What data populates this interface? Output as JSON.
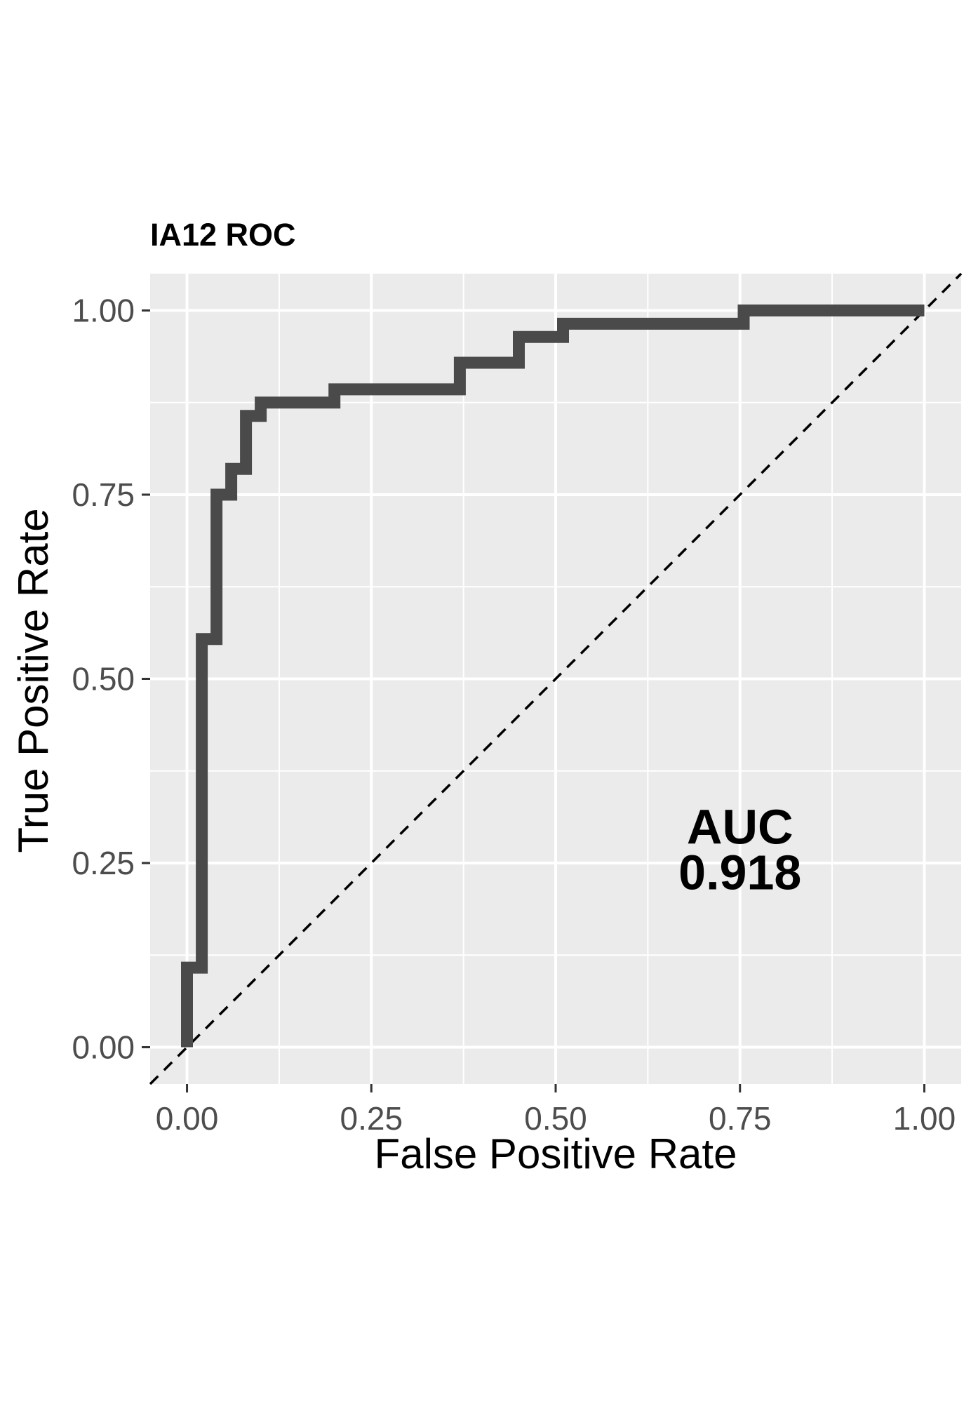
{
  "chart_data": {
    "type": "line",
    "title": "IA12 ROC",
    "xlabel": "False Positive Rate",
    "ylabel": "True Positive Rate",
    "xlim": [
      -0.05,
      1.05
    ],
    "ylim": [
      -0.05,
      1.05
    ],
    "x_ticks": [
      "0.00",
      "0.25",
      "0.50",
      "0.75",
      "1.00"
    ],
    "y_ticks": [
      "0.00",
      "0.25",
      "0.50",
      "0.75",
      "1.00"
    ],
    "x_tick_values": [
      0,
      0.25,
      0.5,
      0.75,
      1.0
    ],
    "y_tick_values": [
      0,
      0.25,
      0.5,
      0.75,
      1.0
    ],
    "grid": true,
    "background": "#ebebeb",
    "series": [
      {
        "color": "#4a4a4a",
        "x": [
          0,
          0,
          0.02,
          0.02,
          0.04,
          0.04,
          0.06,
          0.06,
          0.08,
          0.08,
          0.1,
          0.1,
          0.2,
          0.2,
          0.37,
          0.37,
          0.45,
          0.45,
          0.51,
          0.51,
          0.755,
          0.755,
          1.0
        ],
        "y": [
          0,
          0.108,
          0.108,
          0.554,
          0.554,
          0.75,
          0.75,
          0.785,
          0.785,
          0.857,
          0.857,
          0.875,
          0.875,
          0.893,
          0.893,
          0.929,
          0.929,
          0.964,
          0.964,
          0.982,
          0.982,
          1.0,
          1.0
        ]
      }
    ],
    "reference_line": {
      "x": [
        0,
        1
      ],
      "y": [
        0,
        1
      ],
      "style": "dashed",
      "color": "#000000"
    },
    "annotations": [
      {
        "text": "AUC",
        "x": 0.75,
        "y": 0.3
      },
      {
        "text": "0.918",
        "x": 0.75,
        "y": 0.238
      }
    ]
  }
}
